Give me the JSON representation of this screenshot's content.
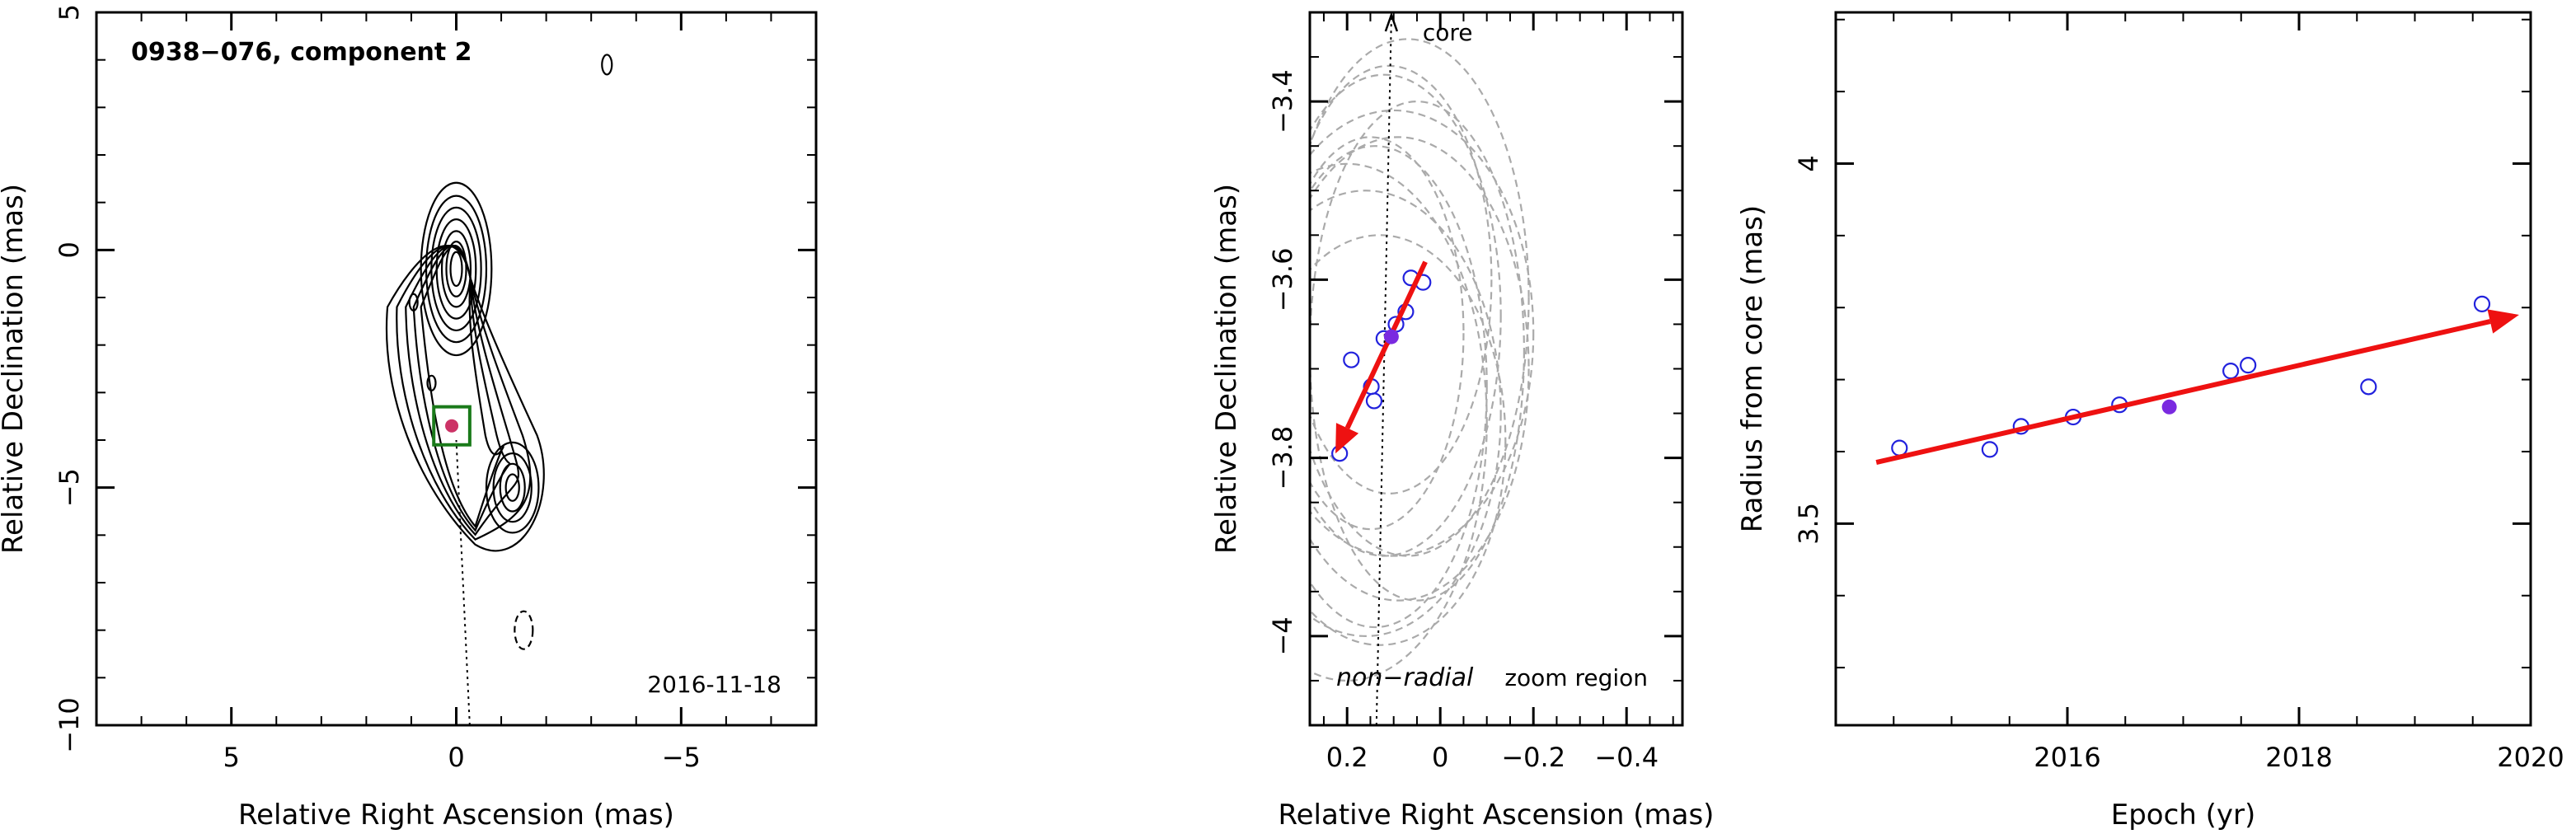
{
  "chart_data": [
    {
      "type": "contour",
      "panel": "left",
      "title": "0938−076, component 2",
      "xlabel": "Relative Right Ascension (mas)",
      "ylabel": "Relative Declination (mas)",
      "xlim": [
        8,
        -8
      ],
      "ylim": [
        -10,
        5
      ],
      "x_ticks": [
        {
          "v": 5,
          "label": "5"
        },
        {
          "v": 0,
          "label": "0"
        },
        {
          "v": -5,
          "label": "−5"
        }
      ],
      "y_ticks": [
        {
          "v": 5,
          "label": "5"
        },
        {
          "v": 0,
          "label": "0"
        },
        {
          "v": -5,
          "label": "−5"
        },
        {
          "v": -10,
          "label": "−10"
        }
      ],
      "epoch": "2016-11-18",
      "zoom_box": {
        "x_center": 0.1,
        "y_center": -3.7,
        "half_width": 0.4
      },
      "component_marker": {
        "x": 0.1,
        "y": -3.7
      },
      "trajectory_line": {
        "x1": -0.3,
        "y1": -10,
        "x2": 0,
        "y2": 0
      },
      "colors": {
        "contour": "#000000",
        "zoom_box": "#1a7a1a",
        "component": "#cc3366"
      }
    },
    {
      "type": "scatter",
      "panel": "middle",
      "xlabel": "Relative Right Ascension (mas)",
      "ylabel": "Relative Declination (mas)",
      "xlim": [
        0.28,
        -0.52
      ],
      "ylim": [
        -4.1,
        -3.3
      ],
      "x_ticks": [
        {
          "v": 0.2,
          "label": "0.2"
        },
        {
          "v": 0,
          "label": "0"
        },
        {
          "v": -0.2,
          "label": "−0.2"
        },
        {
          "v": -0.4,
          "label": "−0.4"
        }
      ],
      "y_ticks": [
        {
          "v": -3.4,
          "label": "−3.4"
        },
        {
          "v": -3.6,
          "label": "−3.6"
        },
        {
          "v": -3.8,
          "label": "−3.8"
        },
        {
          "v": -4,
          "label": "−4"
        }
      ],
      "annotations": {
        "top": "core",
        "bottom_left": "non−radial",
        "bottom_right": "zoom region"
      },
      "points": [
        {
          "x": 0.037,
          "y": -3.603
        },
        {
          "x": 0.063,
          "y": -3.598
        },
        {
          "x": 0.074,
          "y": -3.636
        },
        {
          "x": 0.095,
          "y": -3.65
        },
        {
          "x": 0.121,
          "y": -3.666
        },
        {
          "x": 0.191,
          "y": -3.69
        },
        {
          "x": 0.148,
          "y": -3.72
        },
        {
          "x": 0.142,
          "y": -3.736
        },
        {
          "x": 0.216,
          "y": -3.795
        }
      ],
      "highlight_point": {
        "x": 0.105,
        "y": -3.664
      },
      "motion_vector": {
        "x1": 0.032,
        "y1": -3.58,
        "x2": 0.225,
        "y2": -3.795
      },
      "core_direction": {
        "x1": 0.137,
        "y1": -4.1,
        "x2": 0.105,
        "y2": -3.3
      },
      "error_ellipses": [
        {
          "cx": 0.07,
          "cy": -3.62,
          "rx": 0.26,
          "ry": 0.29
        },
        {
          "cx": 0.1,
          "cy": -3.66,
          "rx": 0.3,
          "ry": 0.25
        },
        {
          "cx": 0.12,
          "cy": -3.64,
          "rx": 0.25,
          "ry": 0.27
        },
        {
          "cx": 0.09,
          "cy": -3.7,
          "rx": 0.28,
          "ry": 0.26
        },
        {
          "cx": 0.14,
          "cy": -3.72,
          "rx": 0.24,
          "ry": 0.27
        },
        {
          "cx": 0.11,
          "cy": -3.6,
          "rx": 0.22,
          "ry": 0.24
        },
        {
          "cx": 0.16,
          "cy": -3.75,
          "rx": 0.29,
          "ry": 0.25
        },
        {
          "cx": 0.05,
          "cy": -3.68,
          "rx": 0.23,
          "ry": 0.28
        },
        {
          "cx": 0.13,
          "cy": -3.78,
          "rx": 0.27,
          "ry": 0.23
        },
        {
          "cx": 0.2,
          "cy": -3.76,
          "rx": 0.3,
          "ry": 0.29
        },
        {
          "cx": 0.15,
          "cy": -3.66,
          "rx": 0.2,
          "ry": 0.22
        }
      ],
      "colors": {
        "points": "#2222dd",
        "highlight": "#7a2ae0",
        "vector": "#ee1111",
        "ellipses": "#aaaaaa"
      }
    },
    {
      "type": "scatter",
      "panel": "right",
      "xlabel": "Epoch (yr)",
      "ylabel": "Radius from core (mas)",
      "xlim": [
        2014.0,
        2020.0
      ],
      "ylim": [
        3.22,
        4.21
      ],
      "x_ticks": [
        {
          "v": 2016,
          "label": "2016"
        },
        {
          "v": 2018,
          "label": "2018"
        },
        {
          "v": 2020,
          "label": "2020"
        }
      ],
      "y_ticks": [
        {
          "v": 3.5,
          "label": "3.5"
        },
        {
          "v": 4,
          "label": "4"
        }
      ],
      "points": [
        {
          "x": 2014.55,
          "y": 3.605
        },
        {
          "x": 2015.33,
          "y": 3.603
        },
        {
          "x": 2015.6,
          "y": 3.635
        },
        {
          "x": 2016.05,
          "y": 3.648
        },
        {
          "x": 2016.45,
          "y": 3.665
        },
        {
          "x": 2017.41,
          "y": 3.712
        },
        {
          "x": 2017.56,
          "y": 3.72
        },
        {
          "x": 2018.6,
          "y": 3.69
        },
        {
          "x": 2019.58,
          "y": 3.805
        }
      ],
      "highlight_point": {
        "x": 2016.88,
        "y": 3.662
      },
      "trend_vector": {
        "x1": 2014.35,
        "y1": 3.585,
        "x2": 2019.9,
        "y2": 3.79
      },
      "colors": {
        "points": "#2222dd",
        "highlight": "#7a2ae0",
        "vector": "#ee1111"
      }
    }
  ]
}
